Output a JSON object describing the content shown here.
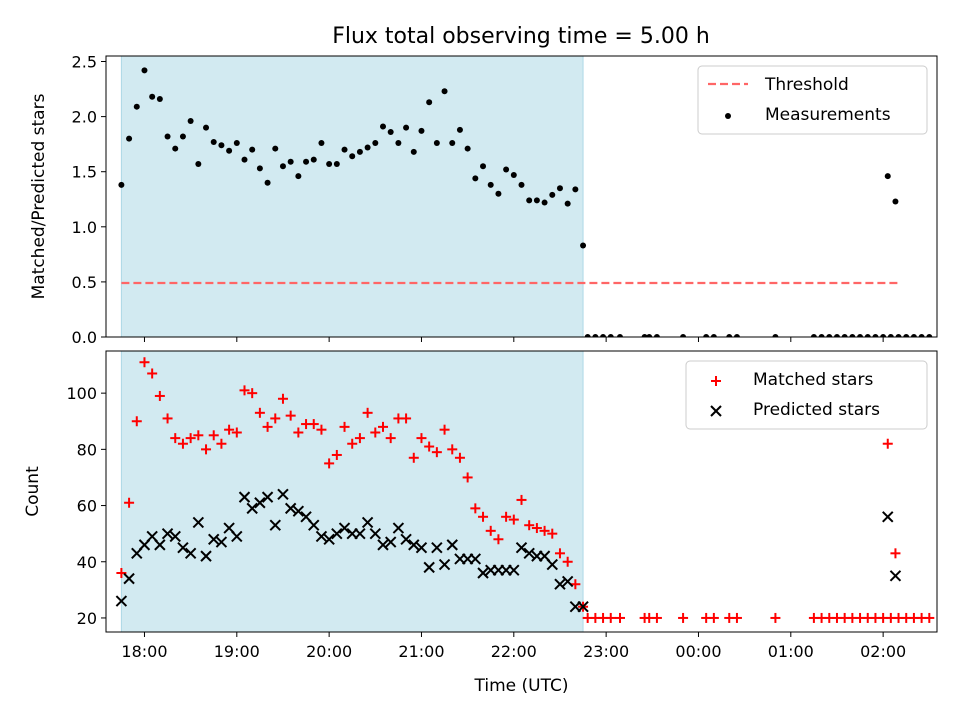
{
  "title": "Flux total observing time = 5.00 h",
  "colors": {
    "shade": "#add8e6",
    "threshold": "#ff6666",
    "measurement": "#000000",
    "matched": "#ff0000",
    "predicted": "#000000"
  },
  "chart_data": [
    {
      "type": "scatter",
      "title": "Flux total observing time = 5.00 h",
      "xlabel": "",
      "ylabel": "Matched/Predicted stars",
      "xlim": [
        "17:35",
        "02:35"
      ],
      "ylim": [
        0,
        2.55
      ],
      "yticks": [
        "0.0",
        "0.5",
        "1.0",
        "1.5",
        "2.0",
        "2.5"
      ],
      "shaded_span": [
        "17:45",
        "22:45"
      ],
      "legend": {
        "position": "top-right",
        "entries": [
          "Threshold",
          "Measurements"
        ]
      },
      "threshold": {
        "name": "Threshold",
        "y": 0.49,
        "x": [
          "17:45",
          "02:10"
        ]
      },
      "series": [
        {
          "name": "Measurements",
          "points": [
            [
              "17:45",
              1.38
            ],
            [
              "17:50",
              1.8
            ],
            [
              "17:55",
              2.09
            ],
            [
              "18:00",
              2.42
            ],
            [
              "18:05",
              2.18
            ],
            [
              "18:10",
              2.16
            ],
            [
              "18:15",
              1.82
            ],
            [
              "18:20",
              1.71
            ],
            [
              "18:25",
              1.82
            ],
            [
              "18:30",
              1.96
            ],
            [
              "18:35",
              1.57
            ],
            [
              "18:40",
              1.9
            ],
            [
              "18:45",
              1.77
            ],
            [
              "18:50",
              1.74
            ],
            [
              "18:55",
              1.69
            ],
            [
              "19:00",
              1.76
            ],
            [
              "19:05",
              1.61
            ],
            [
              "19:10",
              1.7
            ],
            [
              "19:15",
              1.53
            ],
            [
              "19:20",
              1.4
            ],
            [
              "19:25",
              1.71
            ],
            [
              "19:30",
              1.55
            ],
            [
              "19:35",
              1.59
            ],
            [
              "19:40",
              1.46
            ],
            [
              "19:45",
              1.59
            ],
            [
              "19:50",
              1.61
            ],
            [
              "19:55",
              1.76
            ],
            [
              "20:00",
              1.57
            ],
            [
              "20:05",
              1.57
            ],
            [
              "20:10",
              1.7
            ],
            [
              "20:15",
              1.64
            ],
            [
              "20:20",
              1.68
            ],
            [
              "20:25",
              1.72
            ],
            [
              "20:30",
              1.76
            ],
            [
              "20:35",
              1.91
            ],
            [
              "20:40",
              1.86
            ],
            [
              "20:45",
              1.76
            ],
            [
              "20:50",
              1.9
            ],
            [
              "20:55",
              1.68
            ],
            [
              "21:00",
              1.87
            ],
            [
              "21:05",
              2.13
            ],
            [
              "21:10",
              1.76
            ],
            [
              "21:15",
              2.23
            ],
            [
              "21:20",
              1.76
            ],
            [
              "21:25",
              1.88
            ],
            [
              "21:30",
              1.71
            ],
            [
              "21:35",
              1.44
            ],
            [
              "21:40",
              1.55
            ],
            [
              "21:45",
              1.38
            ],
            [
              "21:50",
              1.3
            ],
            [
              "21:55",
              1.52
            ],
            [
              "22:00",
              1.47
            ],
            [
              "22:05",
              1.38
            ],
            [
              "22:10",
              1.24
            ],
            [
              "22:15",
              1.24
            ],
            [
              "22:20",
              1.22
            ],
            [
              "22:25",
              1.29
            ],
            [
              "22:30",
              1.35
            ],
            [
              "22:35",
              1.21
            ],
            [
              "22:40",
              1.34
            ],
            [
              "22:45",
              0.83
            ],
            [
              "22:48",
              0
            ],
            [
              "22:53",
              0
            ],
            [
              "22:58",
              0
            ],
            [
              "23:03",
              0
            ],
            [
              "23:09",
              0
            ],
            [
              "23:25",
              0
            ],
            [
              "23:28",
              0
            ],
            [
              "23:33",
              0
            ],
            [
              "23:50",
              0
            ],
            [
              "24:05",
              0
            ],
            [
              "24:10",
              0
            ],
            [
              "24:20",
              0
            ],
            [
              "24:25",
              0
            ],
            [
              "24:50",
              0
            ],
            [
              "25:15",
              0
            ],
            [
              "25:20",
              0
            ],
            [
              "25:25",
              0
            ],
            [
              "25:30",
              0
            ],
            [
              "25:35",
              0
            ],
            [
              "25:40",
              0
            ],
            [
              "25:45",
              0
            ],
            [
              "25:50",
              0
            ],
            [
              "25:55",
              0
            ],
            [
              "26:00",
              0
            ],
            [
              "26:05",
              0
            ],
            [
              "26:10",
              0
            ],
            [
              "26:15",
              0
            ],
            [
              "26:20",
              0
            ],
            [
              "26:25",
              0
            ],
            [
              "26:30",
              0
            ],
            [
              "26:03",
              1.46
            ],
            [
              "26:08",
              1.23
            ]
          ]
        }
      ]
    },
    {
      "type": "scatter",
      "xlabel": "Time (UTC)",
      "ylabel": "Count",
      "xlim": [
        "17:35",
        "02:35"
      ],
      "ylim": [
        15,
        115
      ],
      "xticks": [
        "18:00",
        "19:00",
        "20:00",
        "21:00",
        "22:00",
        "23:00",
        "00:00",
        "01:00",
        "02:00"
      ],
      "yticks": [
        "20",
        "40",
        "60",
        "80",
        "100"
      ],
      "shaded_span": [
        "17:45",
        "22:45"
      ],
      "legend": {
        "position": "top-right",
        "entries": [
          "Matched stars",
          "Predicted stars"
        ]
      },
      "series": [
        {
          "name": "Matched stars",
          "points": [
            [
              "17:45",
              36
            ],
            [
              "17:50",
              61
            ],
            [
              "17:55",
              90
            ],
            [
              "18:00",
              111
            ],
            [
              "18:05",
              107
            ],
            [
              "18:10",
              99
            ],
            [
              "18:15",
              91
            ],
            [
              "18:20",
              84
            ],
            [
              "18:25",
              82
            ],
            [
              "18:30",
              84
            ],
            [
              "18:35",
              85
            ],
            [
              "18:40",
              80
            ],
            [
              "18:45",
              85
            ],
            [
              "18:50",
              82
            ],
            [
              "18:55",
              87
            ],
            [
              "19:00",
              86
            ],
            [
              "19:05",
              101
            ],
            [
              "19:10",
              100
            ],
            [
              "19:15",
              93
            ],
            [
              "19:20",
              88
            ],
            [
              "19:25",
              91
            ],
            [
              "19:30",
              98
            ],
            [
              "19:35",
              92
            ],
            [
              "19:40",
              86
            ],
            [
              "19:45",
              89
            ],
            [
              "19:50",
              89
            ],
            [
              "19:55",
              87
            ],
            [
              "20:00",
              75
            ],
            [
              "20:05",
              78
            ],
            [
              "20:10",
              88
            ],
            [
              "20:15",
              82
            ],
            [
              "20:20",
              84
            ],
            [
              "20:25",
              93
            ],
            [
              "20:30",
              86
            ],
            [
              "20:35",
              88
            ],
            [
              "20:40",
              84
            ],
            [
              "20:45",
              91
            ],
            [
              "20:50",
              91
            ],
            [
              "20:55",
              77
            ],
            [
              "21:00",
              84
            ],
            [
              "21:05",
              81
            ],
            [
              "21:10",
              79
            ],
            [
              "21:15",
              87
            ],
            [
              "21:20",
              80
            ],
            [
              "21:25",
              77
            ],
            [
              "21:30",
              70
            ],
            [
              "21:35",
              59
            ],
            [
              "21:40",
              56
            ],
            [
              "21:45",
              51
            ],
            [
              "21:50",
              48
            ],
            [
              "21:55",
              56
            ],
            [
              "22:00",
              55
            ],
            [
              "22:05",
              62
            ],
            [
              "22:10",
              53
            ],
            [
              "22:15",
              52
            ],
            [
              "22:20",
              51
            ],
            [
              "22:25",
              50
            ],
            [
              "22:30",
              43
            ],
            [
              "22:35",
              40
            ],
            [
              "22:40",
              32
            ],
            [
              "22:45",
              24
            ],
            [
              "22:48",
              20
            ],
            [
              "22:53",
              20
            ],
            [
              "22:58",
              20
            ],
            [
              "23:03",
              20
            ],
            [
              "23:09",
              20
            ],
            [
              "23:25",
              20
            ],
            [
              "23:28",
              20
            ],
            [
              "23:33",
              20
            ],
            [
              "23:50",
              20
            ],
            [
              "24:05",
              20
            ],
            [
              "24:10",
              20
            ],
            [
              "24:20",
              20
            ],
            [
              "24:25",
              20
            ],
            [
              "24:50",
              20
            ],
            [
              "25:15",
              20
            ],
            [
              "25:20",
              20
            ],
            [
              "25:25",
              20
            ],
            [
              "25:30",
              20
            ],
            [
              "25:35",
              20
            ],
            [
              "25:40",
              20
            ],
            [
              "25:45",
              20
            ],
            [
              "25:50",
              20
            ],
            [
              "25:55",
              20
            ],
            [
              "26:00",
              20
            ],
            [
              "26:05",
              20
            ],
            [
              "26:10",
              20
            ],
            [
              "26:15",
              20
            ],
            [
              "26:20",
              20
            ],
            [
              "26:25",
              20
            ],
            [
              "26:30",
              20
            ],
            [
              "26:03",
              82
            ],
            [
              "26:08",
              43
            ]
          ]
        },
        {
          "name": "Predicted stars",
          "points": [
            [
              "17:45",
              26
            ],
            [
              "17:50",
              34
            ],
            [
              "17:55",
              43
            ],
            [
              "18:00",
              46
            ],
            [
              "18:05",
              49
            ],
            [
              "18:10",
              46
            ],
            [
              "18:15",
              50
            ],
            [
              "18:20",
              49
            ],
            [
              "18:25",
              45
            ],
            [
              "18:30",
              43
            ],
            [
              "18:35",
              54
            ],
            [
              "18:40",
              42
            ],
            [
              "18:45",
              48
            ],
            [
              "18:50",
              47
            ],
            [
              "18:55",
              52
            ],
            [
              "19:00",
              49
            ],
            [
              "19:05",
              63
            ],
            [
              "19:10",
              59
            ],
            [
              "19:15",
              61
            ],
            [
              "19:20",
              63
            ],
            [
              "19:25",
              53
            ],
            [
              "19:30",
              64
            ],
            [
              "19:35",
              59
            ],
            [
              "19:40",
              58
            ],
            [
              "19:45",
              56
            ],
            [
              "19:50",
              53
            ],
            [
              "19:55",
              49
            ],
            [
              "20:00",
              48
            ],
            [
              "20:05",
              50
            ],
            [
              "20:10",
              52
            ],
            [
              "20:15",
              50
            ],
            [
              "20:20",
              50
            ],
            [
              "20:25",
              54
            ],
            [
              "20:30",
              50
            ],
            [
              "20:35",
              46
            ],
            [
              "20:40",
              47
            ],
            [
              "20:45",
              52
            ],
            [
              "20:50",
              48
            ],
            [
              "20:55",
              46
            ],
            [
              "21:00",
              45
            ],
            [
              "21:05",
              38
            ],
            [
              "21:10",
              45
            ],
            [
              "21:15",
              39
            ],
            [
              "21:20",
              46
            ],
            [
              "21:25",
              41
            ],
            [
              "21:30",
              41
            ],
            [
              "21:35",
              41
            ],
            [
              "21:40",
              36
            ],
            [
              "21:45",
              37
            ],
            [
              "21:50",
              37
            ],
            [
              "21:55",
              37
            ],
            [
              "22:00",
              37
            ],
            [
              "22:05",
              45
            ],
            [
              "22:10",
              43
            ],
            [
              "22:15",
              42
            ],
            [
              "22:20",
              42
            ],
            [
              "22:25",
              39
            ],
            [
              "22:30",
              32
            ],
            [
              "22:35",
              33
            ],
            [
              "22:40",
              24
            ],
            [
              "22:45",
              24
            ],
            [
              "26:03",
              56
            ],
            [
              "26:08",
              35
            ]
          ]
        }
      ]
    }
  ]
}
